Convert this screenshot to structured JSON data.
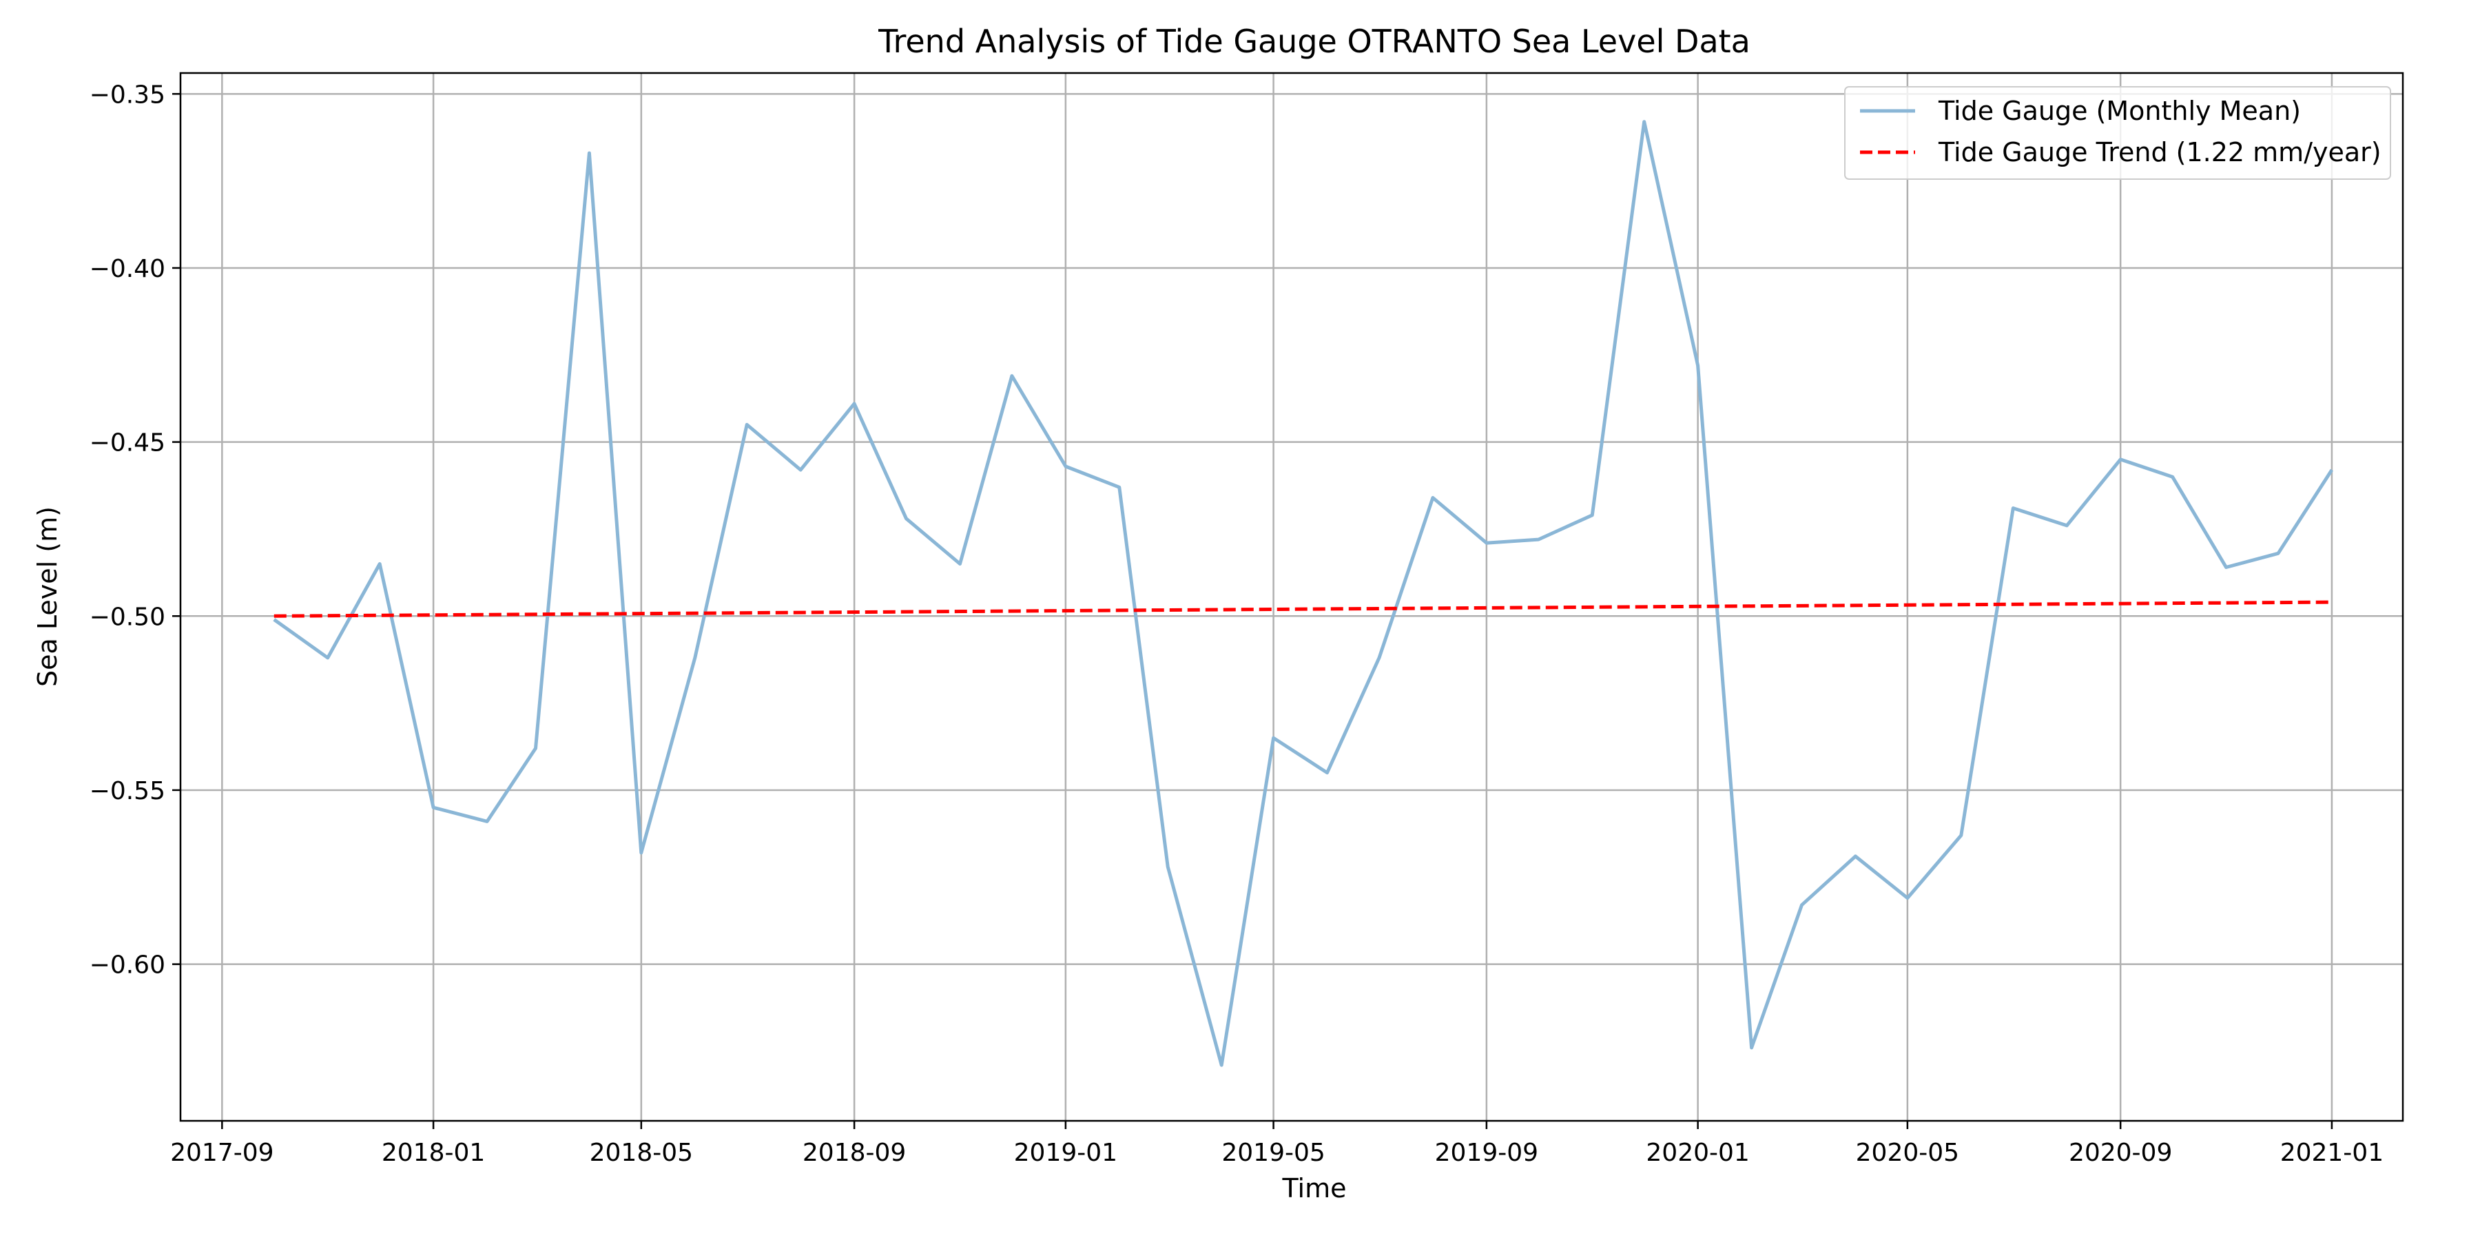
{
  "chart_data": {
    "type": "line",
    "title": "Trend Analysis of Tide Gauge OTRANTO Sea Level Data",
    "xlabel": "Time",
    "ylabel": "Sea Level (m)",
    "x_ticks": [
      "2017-09",
      "2018-01",
      "2018-05",
      "2018-09",
      "2019-01",
      "2019-05",
      "2019-09",
      "2020-01",
      "2020-05",
      "2020-09",
      "2021-01"
    ],
    "y_ticks": [
      "−0.35",
      "−0.40",
      "−0.45",
      "−0.50",
      "−0.55",
      "−0.60"
    ],
    "y_tick_values": [
      -0.35,
      -0.4,
      -0.45,
      -0.5,
      -0.55,
      -0.6
    ],
    "xlim": [
      "2017-08-08",
      "2021-02-11"
    ],
    "ylim": [
      -0.645,
      -0.344
    ],
    "grid": true,
    "legend_position": "upper right",
    "series": [
      {
        "name": "Tide Gauge (Monthly Mean)",
        "color": "#8ab6d6",
        "style": "solid",
        "points": [
          [
            "2017-10-01",
            -0.501
          ],
          [
            "2017-11-01",
            -0.512
          ],
          [
            "2017-12-01",
            -0.485
          ],
          [
            "2018-01-01",
            -0.555
          ],
          [
            "2018-02-01",
            -0.559
          ],
          [
            "2018-03-01",
            -0.538
          ],
          [
            "2018-04-01",
            -0.367
          ],
          [
            "2018-05-01",
            -0.568
          ],
          [
            "2018-06-01",
            -0.512
          ],
          [
            "2018-07-01",
            -0.445
          ],
          [
            "2018-08-01",
            -0.458
          ],
          [
            "2018-09-01",
            -0.439
          ],
          [
            "2018-10-01",
            -0.472
          ],
          [
            "2018-11-01",
            -0.485
          ],
          [
            "2018-12-01",
            -0.431
          ],
          [
            "2019-01-01",
            -0.457
          ],
          [
            "2019-02-01",
            -0.463
          ],
          [
            "2019-03-01",
            -0.572
          ],
          [
            "2019-04-01",
            -0.629
          ],
          [
            "2019-05-01",
            -0.535
          ],
          [
            "2019-06-01",
            -0.545
          ],
          [
            "2019-07-01",
            -0.512
          ],
          [
            "2019-08-01",
            -0.466
          ],
          [
            "2019-09-01",
            -0.479
          ],
          [
            "2019-10-01",
            -0.478
          ],
          [
            "2019-11-01",
            -0.471
          ],
          [
            "2019-12-01",
            -0.358
          ],
          [
            "2020-01-01",
            -0.428
          ],
          [
            "2020-02-01",
            -0.624
          ],
          [
            "2020-03-01",
            -0.583
          ],
          [
            "2020-04-01",
            -0.569
          ],
          [
            "2020-05-01",
            -0.581
          ],
          [
            "2020-06-01",
            -0.563
          ],
          [
            "2020-07-01",
            -0.469
          ],
          [
            "2020-08-01",
            -0.474
          ],
          [
            "2020-09-01",
            -0.455
          ],
          [
            "2020-10-01",
            -0.46
          ],
          [
            "2020-11-01",
            -0.486
          ],
          [
            "2020-12-01",
            -0.482
          ],
          [
            "2021-01-01",
            -0.458
          ]
        ]
      },
      {
        "name": "Tide Gauge Trend (1.22 mm/year)",
        "color": "#ff0000",
        "style": "dashed",
        "points": [
          [
            "2017-10-01",
            -0.5
          ],
          [
            "2021-01-01",
            -0.496
          ]
        ]
      }
    ]
  }
}
